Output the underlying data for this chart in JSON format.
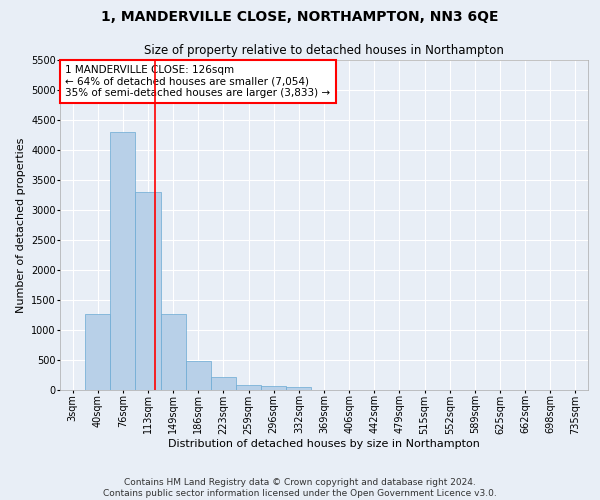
{
  "title": "1, MANDERVILLE CLOSE, NORTHAMPTON, NN3 6QE",
  "subtitle": "Size of property relative to detached houses in Northampton",
  "xlabel": "Distribution of detached houses by size in Northampton",
  "ylabel": "Number of detached properties",
  "footer_line1": "Contains HM Land Registry data © Crown copyright and database right 2024.",
  "footer_line2": "Contains public sector information licensed under the Open Government Licence v3.0.",
  "bar_labels": [
    "3sqm",
    "40sqm",
    "76sqm",
    "113sqm",
    "149sqm",
    "186sqm",
    "223sqm",
    "259sqm",
    "296sqm",
    "332sqm",
    "369sqm",
    "406sqm",
    "442sqm",
    "479sqm",
    "515sqm",
    "552sqm",
    "589sqm",
    "625sqm",
    "662sqm",
    "698sqm",
    "735sqm"
  ],
  "bar_values": [
    0,
    1270,
    4300,
    3300,
    1270,
    490,
    220,
    90,
    75,
    55,
    0,
    0,
    0,
    0,
    0,
    0,
    0,
    0,
    0,
    0,
    0
  ],
  "bar_color": "#b8d0e8",
  "bar_edge_color": "#6aaad4",
  "vline_x": 3.27,
  "vline_color": "red",
  "annotation_text": "1 MANDERVILLE CLOSE: 126sqm\n← 64% of detached houses are smaller (7,054)\n35% of semi-detached houses are larger (3,833) →",
  "annotation_box_color": "#ffffff",
  "annotation_box_edge": "red",
  "ylim": [
    0,
    5500
  ],
  "yticks": [
    0,
    500,
    1000,
    1500,
    2000,
    2500,
    3000,
    3500,
    4000,
    4500,
    5000,
    5500
  ],
  "bg_color": "#e8eef6",
  "plot_bg_color": "#e8eef6",
  "grid_color": "#ffffff",
  "title_fontsize": 10,
  "subtitle_fontsize": 8.5,
  "ylabel_fontsize": 8,
  "xlabel_fontsize": 8,
  "tick_fontsize": 7,
  "footer_fontsize": 6.5,
  "annotation_fontsize": 7.5
}
